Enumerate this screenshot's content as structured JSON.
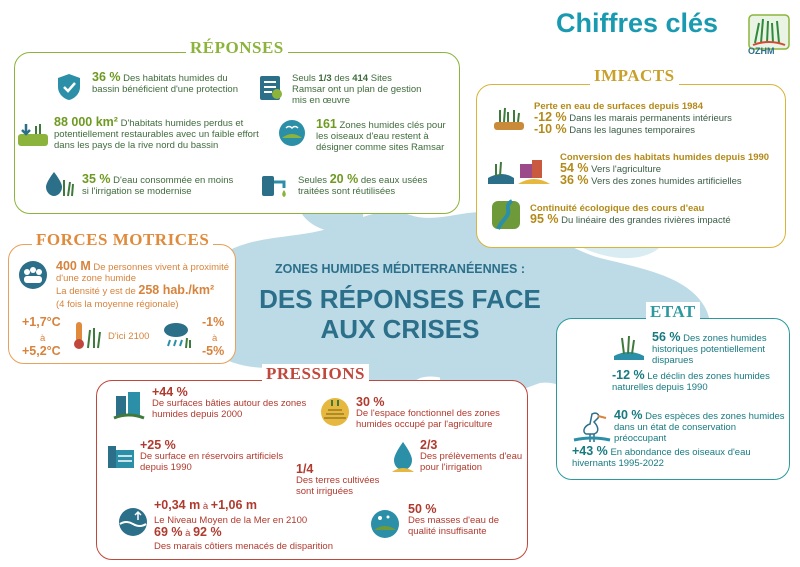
{
  "header": {
    "title": "Chiffres clés",
    "logo_text": "OZHM"
  },
  "center": {
    "subtitle": "ZONES HUMIDES MÉDITERRANÉENNES :",
    "title_line1": "DES RÉPONSES FACE",
    "title_line2": "AUX CRISES"
  },
  "colors": {
    "reponses": "#8cb33b",
    "impacts": "#d9b43a",
    "forces": "#e6a15a",
    "pressions": "#c0473c",
    "etat": "#2b9a9f",
    "map": "#b9dbe6"
  },
  "reponses": {
    "title": "RÉPONSES",
    "items": [
      {
        "value": "36 %",
        "text": "Des habitats humides du bassin bénéficient d'une protection",
        "icon": "shield-icon"
      },
      {
        "prefix": "Seuls",
        "value": "1/3",
        "mid": "des",
        "value2": "414",
        "text": "Sites Ramsar ont un plan de gestion mis en œuvre",
        "icon": "clipboard-icon"
      },
      {
        "value": "88 000 km²",
        "text": "D'habitats humides perdus et potentiellement restaurables avec un faible effort dans les pays de la rive nord du bassin",
        "icon": "restoration-icon"
      },
      {
        "value": "161",
        "text": "Zones humides clés pour les oiseaux d'eau restent à désigner comme sites Ramsar",
        "icon": "bird-site-icon"
      },
      {
        "value": "35 %",
        "text": "D'eau consommée en moins si l'irrigation se modernise",
        "icon": "water-drop-icon"
      },
      {
        "prefix": "Seules",
        "value": "20 %",
        "text": "des eaux usées traitées sont réutilisées",
        "icon": "wastewater-icon"
      }
    ]
  },
  "impacts": {
    "title": "IMPACTS",
    "items": [
      {
        "heading": "Perte en eau de surfaces depuis 1984",
        "lines": [
          {
            "value": "-12 %",
            "text": "Dans les marais permanents intérieurs"
          },
          {
            "value": "-10 %",
            "text": "Dans les lagunes temporaires"
          }
        ],
        "icon": "marsh-icon"
      },
      {
        "heading": "Conversion des habitats humides depuis 1990",
        "lines": [
          {
            "value": "54 %",
            "text": "Vers l'agriculture"
          },
          {
            "value": "36 %",
            "text": "Vers des zones humides artificielles"
          }
        ],
        "icon": "conversion-icon"
      },
      {
        "heading": "Continuité écologique des cours d'eau",
        "lines": [
          {
            "value": "95 %",
            "text": "Du linéaire des grandes rivières impacté"
          }
        ],
        "icon": "river-icon"
      }
    ]
  },
  "forces": {
    "title": "FORCES MOTRICES",
    "pop_value": "400 M",
    "pop_text": "De personnes vivent à proximité d'une zone humide",
    "density_text": "La densité y est de",
    "density_value": "258 hab./km²",
    "density_note": "(4 fois la moyenne régionale)",
    "temp_low": "+1,7°C",
    "temp_high": "+5,2°C",
    "connector": "à",
    "horizon": "D'ici 2100",
    "rain_low": "-1%",
    "rain_high": "-5%"
  },
  "etat": {
    "title": "ETAT",
    "items": [
      {
        "value": "56 %",
        "text": "Des zones humides historiques potentiellement disparues",
        "icon": "lost-wetland-icon"
      },
      {
        "value": "-12 %",
        "text": "Le déclin des zones humides naturelles depuis 1990"
      },
      {
        "value": "40 %",
        "text": "Des espèces des zones humides dans un état de conservation préoccupant",
        "icon": "heron-icon"
      },
      {
        "value": "+43 %",
        "text": "En abondance des oiseaux d'eau hivernants 1995-2022"
      }
    ]
  },
  "pressions": {
    "title": "PRESSIONS",
    "items": [
      {
        "value": "+44 %",
        "text": "De surfaces bâties autour des zones humides depuis 2000",
        "icon": "buildings-icon"
      },
      {
        "value": "30 %",
        "text": "De l'espace fonctionnel des zones humides occupé par l'agriculture",
        "icon": "field-icon"
      },
      {
        "value": "+25 %",
        "text": "De surface en réservoirs artificiels depuis 1990",
        "icon": "dam-icon"
      },
      {
        "value": "2/3",
        "text": "Des prélèvements d'eau pour l'irrigation",
        "icon": "irrigation-drop-icon"
      },
      {
        "value": "1/4",
        "text": "Des terres cultivées sont irriguées"
      },
      {
        "value_a": "+0,34 m",
        "connector": "à",
        "value_b": "+1,06 m",
        "text": "Le Niveau Moyen de la Mer en 2100",
        "icon": "sea-level-icon"
      },
      {
        "value_a": "69 %",
        "connector": "à",
        "value_b": "92 %",
        "text": "Des marais côtiers menacés de disparition"
      },
      {
        "value": "50 %",
        "text": "Des masses d'eau de qualité insuffisante",
        "icon": "water-quality-icon"
      }
    ]
  }
}
